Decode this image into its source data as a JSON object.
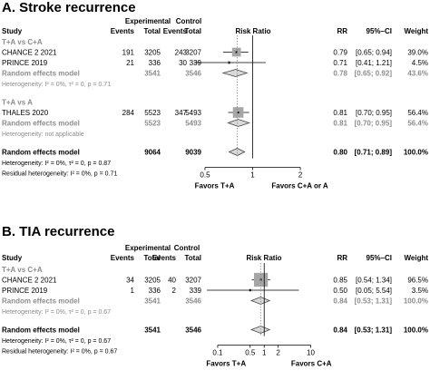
{
  "chart_data": [
    {
      "type": "forest",
      "title": "A. Stroke recurrence",
      "column_headers": {
        "study": "Study",
        "experimental": "Experimental",
        "control": "Control",
        "events": "Events",
        "total": "Total",
        "effect": "Risk Ratio",
        "rr": "RR",
        "ci": "95%–CI",
        "weight": "Weight"
      },
      "x_axis": {
        "scale": "log",
        "ticks": [
          "0.5",
          "1",
          "2"
        ],
        "tick_values": [
          0.5,
          1,
          2
        ],
        "range": [
          0.45,
          2.25
        ],
        "favors_left": "Favors T+A",
        "favors_right": "Favors C+A or A"
      },
      "rows": [
        {
          "kind": "group",
          "label": "T+A vs C+A"
        },
        {
          "kind": "study",
          "label": "CHANCE 2 2021",
          "exp_events": "191",
          "exp_total": "3205",
          "ctrl_events": "243",
          "ctrl_total": "3207",
          "rr": 0.79,
          "lo": 0.65,
          "hi": 0.94,
          "rr_text": "0.79",
          "ci_text": "[0.65; 0.94]",
          "weight_text": "39.0%",
          "weight": 39.0
        },
        {
          "kind": "study",
          "label": "PRINCE 2019",
          "exp_events": "21",
          "exp_total": "336",
          "ctrl_events": "30",
          "ctrl_total": "339",
          "rr": 0.71,
          "lo": 0.41,
          "hi": 1.21,
          "rr_text": "0.71",
          "ci_text": "[0.41; 1.21]",
          "weight_text": "4.5%",
          "weight": 4.5
        },
        {
          "kind": "subtotal",
          "label": "Random effects model",
          "exp_total": "3541",
          "ctrl_total": "3546",
          "rr": 0.78,
          "lo": 0.65,
          "hi": 0.92,
          "rr_text": "0.78",
          "ci_text": "[0.65; 0.92]",
          "weight_text": "43.6%"
        },
        {
          "kind": "het",
          "label": "Heterogeneity: I² = 0%, τ² = 0, p = 0.71"
        },
        {
          "kind": "spacer"
        },
        {
          "kind": "group",
          "label": "T+A vs A"
        },
        {
          "kind": "study",
          "label": "THALES 2020",
          "exp_events": "284",
          "exp_total": "5523",
          "ctrl_events": "347",
          "ctrl_total": "5493",
          "rr": 0.81,
          "lo": 0.7,
          "hi": 0.95,
          "rr_text": "0.81",
          "ci_text": "[0.70; 0.95]",
          "weight_text": "56.4%",
          "weight": 56.4
        },
        {
          "kind": "subtotal",
          "label": "Random effects model",
          "exp_total": "5523",
          "ctrl_total": "5493",
          "rr": 0.81,
          "lo": 0.7,
          "hi": 0.95,
          "rr_text": "0.81",
          "ci_text": "[0.70; 0.95]",
          "weight_text": "56.4%"
        },
        {
          "kind": "het",
          "label": "Heterogeneity: not applicable"
        },
        {
          "kind": "spacer"
        },
        {
          "kind": "overall",
          "label": "Random effects model",
          "exp_total": "9064",
          "ctrl_total": "9039",
          "rr": 0.8,
          "lo": 0.71,
          "hi": 0.89,
          "rr_text": "0.80",
          "ci_text": "[0.71; 0.89]",
          "weight_text": "100.0%"
        },
        {
          "kind": "het_black",
          "label": "Heterogeneity: I² = 0%, τ² = 0, p = 0.87"
        },
        {
          "kind": "het_black",
          "label": "Residual heterogeneity: I² = 0%, p = 0.71"
        }
      ]
    },
    {
      "type": "forest",
      "title": "B. TIA recurrence",
      "column_headers": {
        "study": "Study",
        "experimental": "Experimental",
        "control": "Control",
        "events": "Events",
        "total": "Total",
        "effect": "Risk Ratio",
        "rr": "RR",
        "ci": "95%–CI",
        "weight": "Weight"
      },
      "x_axis": {
        "scale": "log",
        "ticks": [
          "0.1",
          "0.5",
          "1",
          "2",
          "10"
        ],
        "tick_values": [
          0.1,
          0.5,
          1,
          2,
          10
        ],
        "range": [
          0.07,
          14
        ],
        "favors_left": "Favors T+A",
        "favors_right": "Favors C+A"
      },
      "rows": [
        {
          "kind": "group",
          "label": "T+A vs C+A"
        },
        {
          "kind": "study",
          "label": "CHANCE 2 2021",
          "exp_events": "34",
          "exp_total": "3205",
          "ctrl_events": "40",
          "ctrl_total": "3207",
          "rr": 0.85,
          "lo": 0.54,
          "hi": 1.34,
          "rr_text": "0.85",
          "ci_text": "[0.54; 1.34]",
          "weight_text": "96.5%",
          "weight": 96.5
        },
        {
          "kind": "study",
          "label": "PRINCE 2019",
          "exp_events": "1",
          "exp_total": "336",
          "ctrl_events": "2",
          "ctrl_total": "339",
          "rr": 0.5,
          "lo": 0.05,
          "hi": 5.54,
          "rr_text": "0.50",
          "ci_text": "[0.05; 5.54]",
          "weight_text": "3.5%",
          "weight": 3.5
        },
        {
          "kind": "subtotal",
          "label": "Random effects model",
          "exp_total": "3541",
          "ctrl_total": "3546",
          "rr": 0.84,
          "lo": 0.53,
          "hi": 1.31,
          "rr_text": "0.84",
          "ci_text": "[0.53; 1.31]",
          "weight_text": "100.0%"
        },
        {
          "kind": "het",
          "label": "Heterogeneity: I² = 0%, τ² = 0, p = 0.67"
        },
        {
          "kind": "spacer"
        },
        {
          "kind": "overall",
          "label": "Random effects model",
          "exp_total": "3541",
          "ctrl_total": "3546",
          "rr": 0.84,
          "lo": 0.53,
          "hi": 1.31,
          "rr_text": "0.84",
          "ci_text": "[0.53; 1.31]",
          "weight_text": "100.0%"
        },
        {
          "kind": "het_black",
          "label": "Heterogeneity: I² = 0%, τ² = 0, p = 0.67"
        },
        {
          "kind": "het_black",
          "label": "Residual heterogeneity: I² = 0%, p = 0.67"
        }
      ]
    }
  ],
  "colors": {
    "text": "#000000",
    "subgroup_text": "#8c8c8c",
    "study_box": "#a6a6a6",
    "diamond_fill": "#d9d9d9",
    "dotted_line": "#8c8c8c"
  }
}
